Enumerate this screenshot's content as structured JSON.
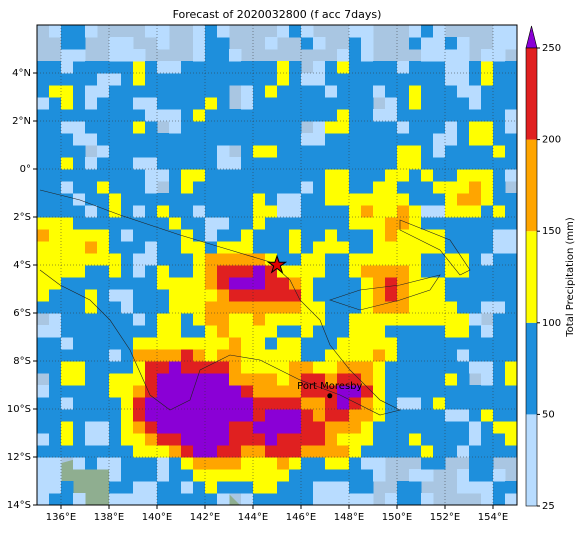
{
  "map": {
    "title": "Forecast of 2020032800 (f acc 7days)",
    "xlim": [
      135,
      155
    ],
    "ylim": [
      -14,
      6
    ],
    "xticks": [
      {
        "value": 136,
        "label": "136°E"
      },
      {
        "value": 138,
        "label": "138°E"
      },
      {
        "value": 140,
        "label": "140°E"
      },
      {
        "value": 142,
        "label": "142°E"
      },
      {
        "value": 144,
        "label": "144°E"
      },
      {
        "value": 146,
        "label": "146°E"
      },
      {
        "value": 148,
        "label": "148°E"
      },
      {
        "value": 150,
        "label": "150°E"
      },
      {
        "value": 152,
        "label": "152°E"
      },
      {
        "value": 154,
        "label": "154°E"
      }
    ],
    "yticks": [
      {
        "value": 4,
        "label": "4°N"
      },
      {
        "value": 2,
        "label": "2°N"
      },
      {
        "value": 0,
        "label": "0°"
      },
      {
        "value": -2,
        "label": "2°S"
      },
      {
        "value": -4,
        "label": "4°S"
      },
      {
        "value": -6,
        "label": "6°S"
      },
      {
        "value": -8,
        "label": "8°S"
      },
      {
        "value": -10,
        "label": "10°S"
      },
      {
        "value": -12,
        "label": "12°S"
      },
      {
        "value": -14,
        "label": "14°S"
      }
    ],
    "grid": true,
    "colorbar": {
      "label": "Total Precipitation (mm)",
      "levels": [
        25,
        50,
        100,
        150,
        200,
        250
      ],
      "colors": [
        "#b8dcff",
        "#1e8fdc",
        "#ffff00",
        "#ffa500",
        "#e02020"
      ],
      "extend_color": "#8a00d6"
    },
    "places": [
      {
        "name": "Port Moresby",
        "lon": 147.2,
        "lat": -9.45
      }
    ],
    "marker": {
      "lon": 145,
      "lat": -4,
      "color": "#e00000"
    }
  }
}
